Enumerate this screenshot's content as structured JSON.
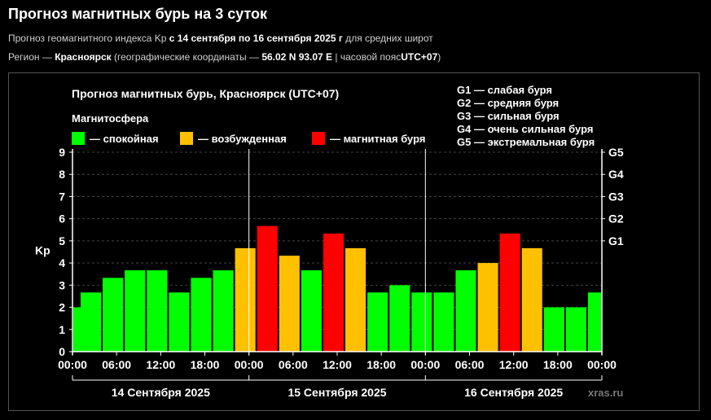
{
  "header": {
    "title": "Прогноз магнитных бурь на 3 суток",
    "line1_prefix": "Прогноз геомагнитного индекса Kp",
    "line1_range": "с 14 сентября по 16 сентября 2025 г",
    "line1_suffix": "для средних широт",
    "line2_prefix": "Регион —",
    "line2_city": "Красноярск",
    "line2_coords_label": "(географические координаты —",
    "line2_coords": "56.02 N 93.07 E",
    "line2_tz_label": "| часовой пояс",
    "line2_tz": "UTC+07",
    "line2_close": ")"
  },
  "watermark": "xras.ru",
  "colors": {
    "quiet": "#00ff00",
    "active": "#ffc000",
    "storm": "#ff0000",
    "background": "#000000"
  },
  "chart_data": {
    "type": "bar",
    "title": "Прогноз магнитных бурь, Красноярск (UTC+07)",
    "ylabel": "Kp",
    "ylim": [
      0,
      9
    ],
    "yticks": [
      "0",
      "1",
      "2",
      "3",
      "4",
      "5",
      "6",
      "7",
      "8",
      "9"
    ],
    "right_ticks": [
      {
        "label": "G1",
        "kp": 5
      },
      {
        "label": "G2",
        "kp": 6
      },
      {
        "label": "G3",
        "kp": 7
      },
      {
        "label": "G4",
        "kp": 8
      },
      {
        "label": "G5",
        "kp": 9
      }
    ],
    "g_legend": [
      "G1 — слабая буря",
      "G2 — средняя буря",
      "G3 — сильная буря",
      "G4 — очень сильная буря",
      "G5 — экстремальная буря"
    ],
    "legend_title": "Магнитосфера",
    "legend": [
      {
        "label": "— спокойная",
        "level": "quiet"
      },
      {
        "label": "— возбужденная",
        "level": "active"
      },
      {
        "label": "— магнитная буря",
        "level": "storm"
      }
    ],
    "xticks": [
      "00:00",
      "06:00",
      "12:00",
      "18:00",
      "00:00",
      "06:00",
      "12:00",
      "18:00",
      "00:00",
      "06:00",
      "12:00",
      "18:00",
      "00:00"
    ],
    "days": [
      "14 Сентября 2025",
      "15 Сентября 2025",
      "16 Сентября 2025"
    ],
    "bars": [
      {
        "day": 0,
        "start_h": 0,
        "kp": 2.0,
        "level": "quiet"
      },
      {
        "day": 0,
        "start_h": 1,
        "kp": 2.67,
        "level": "quiet"
      },
      {
        "day": 0,
        "start_h": 4,
        "kp": 3.33,
        "level": "quiet"
      },
      {
        "day": 0,
        "start_h": 7,
        "kp": 3.67,
        "level": "quiet"
      },
      {
        "day": 0,
        "start_h": 10,
        "kp": 3.67,
        "level": "quiet"
      },
      {
        "day": 0,
        "start_h": 13,
        "kp": 2.67,
        "level": "quiet"
      },
      {
        "day": 0,
        "start_h": 16,
        "kp": 3.33,
        "level": "quiet"
      },
      {
        "day": 0,
        "start_h": 19,
        "kp": 3.67,
        "level": "quiet"
      },
      {
        "day": 0,
        "start_h": 22,
        "kp": 4.67,
        "level": "active"
      },
      {
        "day": 1,
        "start_h": 1,
        "kp": 5.67,
        "level": "storm"
      },
      {
        "day": 1,
        "start_h": 4,
        "kp": 4.33,
        "level": "active"
      },
      {
        "day": 1,
        "start_h": 7,
        "kp": 3.67,
        "level": "quiet"
      },
      {
        "day": 1,
        "start_h": 10,
        "kp": 5.33,
        "level": "storm"
      },
      {
        "day": 1,
        "start_h": 13,
        "kp": 4.67,
        "level": "active"
      },
      {
        "day": 1,
        "start_h": 16,
        "kp": 2.67,
        "level": "quiet"
      },
      {
        "day": 1,
        "start_h": 19,
        "kp": 3.0,
        "level": "quiet"
      },
      {
        "day": 1,
        "start_h": 22,
        "kp": 2.67,
        "level": "quiet"
      },
      {
        "day": 2,
        "start_h": 1,
        "kp": 2.67,
        "level": "quiet"
      },
      {
        "day": 2,
        "start_h": 4,
        "kp": 3.67,
        "level": "quiet"
      },
      {
        "day": 2,
        "start_h": 7,
        "kp": 4.0,
        "level": "active"
      },
      {
        "day": 2,
        "start_h": 10,
        "kp": 5.33,
        "level": "storm"
      },
      {
        "day": 2,
        "start_h": 13,
        "kp": 4.67,
        "level": "active"
      },
      {
        "day": 2,
        "start_h": 16,
        "kp": 2.0,
        "level": "quiet"
      },
      {
        "day": 2,
        "start_h": 19,
        "kp": 2.0,
        "level": "quiet"
      },
      {
        "day": 2,
        "start_h": 22,
        "kp": 2.67,
        "level": "quiet"
      }
    ]
  }
}
